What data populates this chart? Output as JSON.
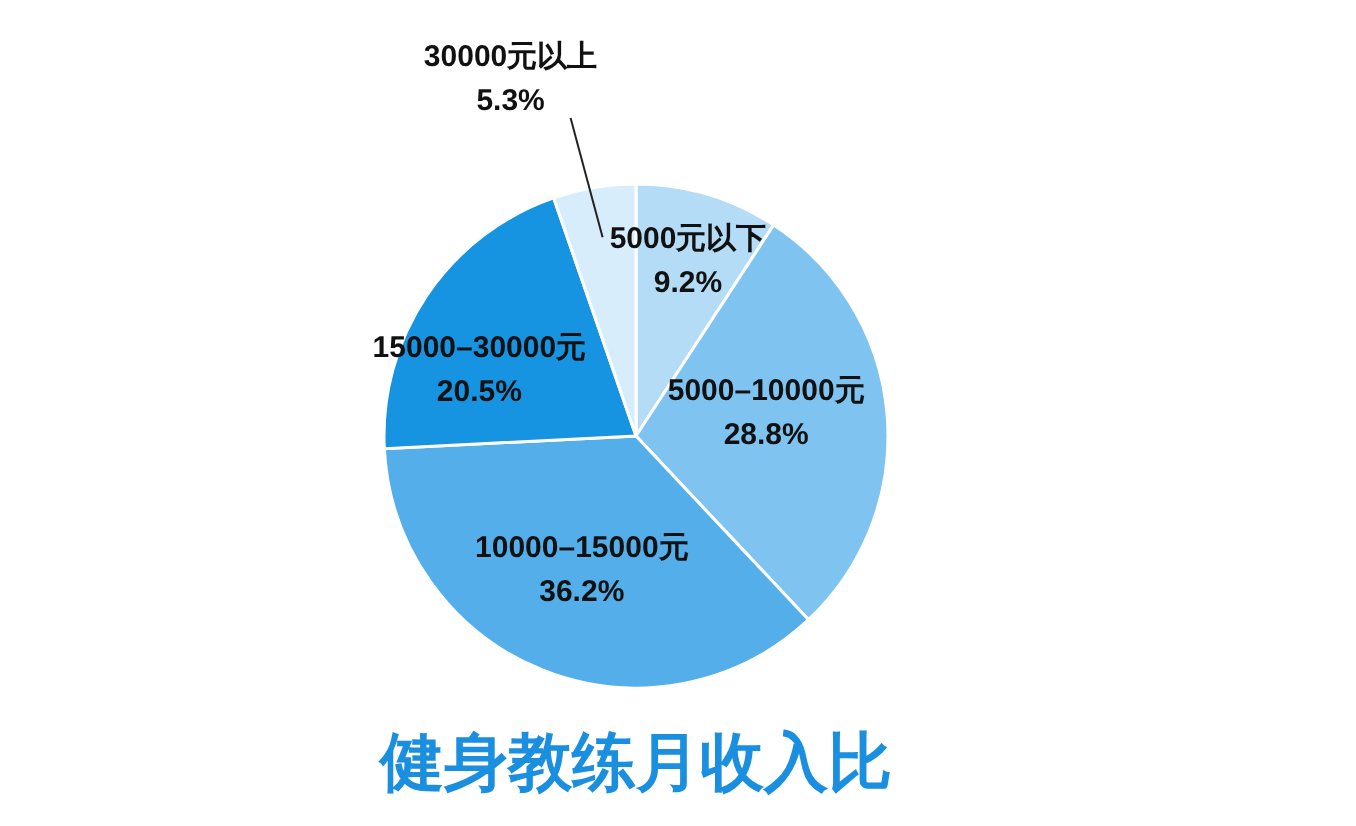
{
  "chart_data": {
    "type": "pie",
    "title": "健身教练月收入比",
    "categories": [
      "5000元以下",
      "5000–10000元",
      "10000–15000元",
      "15000–30000元",
      "30000元以上"
    ],
    "values": [
      9.2,
      28.8,
      36.2,
      20.5,
      5.3
    ],
    "colors": [
      "#b5dcf6",
      "#7fc3f1",
      "#53aeea",
      "#1693e1",
      "#d8edfb"
    ],
    "value_labels": [
      "9.2%",
      "28.8%",
      "36.2%",
      "20.5%",
      "5.3%"
    ]
  }
}
